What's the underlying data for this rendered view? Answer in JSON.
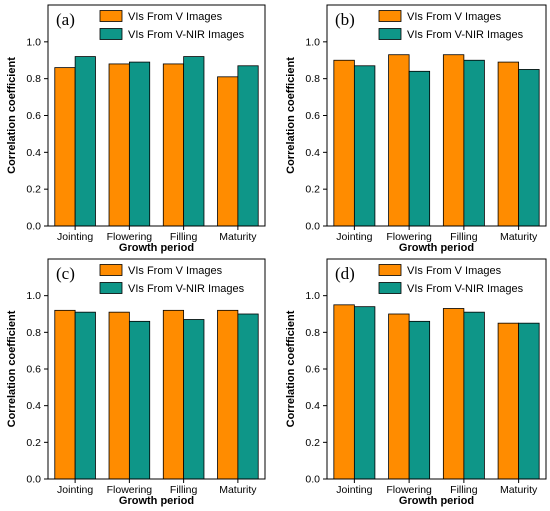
{
  "colors": {
    "series_v": "#FF8C00",
    "series_vnir": "#0E9688",
    "axis": "#000000"
  },
  "chart_data": [
    {
      "type": "bar",
      "panel_label": "(a)",
      "categories": [
        "Jointing",
        "Flowering",
        "Filling",
        "Maturity"
      ],
      "xlabel": "Growth period",
      "ylabel": "Correlation coefficient",
      "ylim": [
        0,
        1.2
      ],
      "yticks": [
        "0.0",
        "0.2",
        "0.4",
        "0.6",
        "0.8",
        "1.0"
      ],
      "legend": "top-center",
      "series": [
        {
          "name": "VIs From V Images",
          "values": [
            0.86,
            0.88,
            0.88,
            0.81
          ]
        },
        {
          "name": "VIs From V-NIR Images",
          "values": [
            0.92,
            0.89,
            0.92,
            0.87
          ]
        }
      ]
    },
    {
      "type": "bar",
      "panel_label": "(b)",
      "categories": [
        "Jointing",
        "Flowering",
        "Filling",
        "Maturity"
      ],
      "xlabel": "Growth period",
      "ylabel": "Correlation coefficient",
      "ylim": [
        0,
        1.2
      ],
      "yticks": [
        "0.0",
        "0.2",
        "0.4",
        "0.6",
        "0.8",
        "1.0"
      ],
      "legend": "top-center",
      "series": [
        {
          "name": "VIs From V Images",
          "values": [
            0.9,
            0.93,
            0.93,
            0.89
          ]
        },
        {
          "name": "VIs From V-NIR Images",
          "values": [
            0.87,
            0.84,
            0.9,
            0.85
          ]
        }
      ]
    },
    {
      "type": "bar",
      "panel_label": "(c)",
      "categories": [
        "Jointing",
        "Flowering",
        "Filling",
        "Maturity"
      ],
      "xlabel": "Growth period",
      "ylabel": "Correlation coefficient",
      "ylim": [
        0,
        1.2
      ],
      "yticks": [
        "0.0",
        "0.2",
        "0.4",
        "0.6",
        "0.8",
        "1.0"
      ],
      "legend": "top-center",
      "series": [
        {
          "name": "VIs From V Images",
          "values": [
            0.92,
            0.91,
            0.92,
            0.92
          ]
        },
        {
          "name": "VIs From V-NIR Images",
          "values": [
            0.91,
            0.86,
            0.87,
            0.9
          ]
        }
      ]
    },
    {
      "type": "bar",
      "panel_label": "(d)",
      "categories": [
        "Jointing",
        "Flowering",
        "Filling",
        "Maturity"
      ],
      "xlabel": "Growth period",
      "ylabel": "Correlation coefficient",
      "ylim": [
        0,
        1.2
      ],
      "yticks": [
        "0.0",
        "0.2",
        "0.4",
        "0.6",
        "0.8",
        "1.0"
      ],
      "legend": "top-center",
      "series": [
        {
          "name": "VIs From V Images",
          "values": [
            0.95,
            0.9,
            0.93,
            0.85
          ]
        },
        {
          "name": "VIs From V-NIR Images",
          "values": [
            0.94,
            0.86,
            0.91,
            0.85
          ]
        }
      ]
    }
  ]
}
